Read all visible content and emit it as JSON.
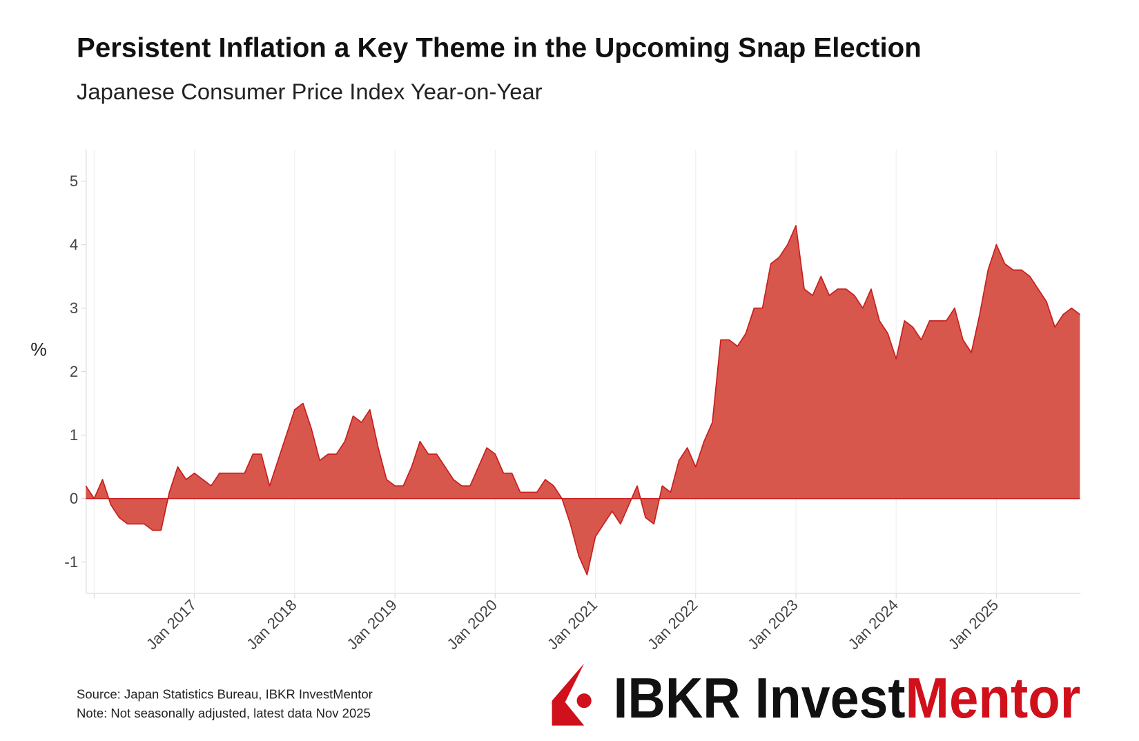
{
  "chart_data": {
    "type": "area",
    "title": "Persistent Inflation a Key Theme in the Upcoming Snap Election",
    "subtitle": "Japanese Consumer Price Index Year-on-Year",
    "xlabel": "",
    "ylabel": "%",
    "ylim": [
      -1.5,
      5.5
    ],
    "yticks": [
      5,
      4,
      3,
      2,
      1,
      0,
      -1
    ],
    "ytick_labels": [
      "5",
      "4",
      "3",
      "2",
      "1",
      "0",
      "-1"
    ],
    "xtick_labels": [
      "Jan 2017",
      "Jan 2018",
      "Jan 2019",
      "Jan 2020",
      "Jan 2021",
      "Jan 2022",
      "Jan 2023",
      "Jan 2024",
      "Jan 2025"
    ],
    "grid": true,
    "x_start": "Dec 2015",
    "x_end": "Nov 2025",
    "frequency": "monthly",
    "series": [
      {
        "name": "Japan CPI YoY",
        "color": "#d8574d",
        "line_color": "#c81e1e",
        "values": [
          0.2,
          0.0,
          0.3,
          -0.1,
          -0.3,
          -0.4,
          -0.4,
          -0.4,
          -0.5,
          -0.5,
          0.1,
          0.5,
          0.3,
          0.4,
          0.3,
          0.2,
          0.4,
          0.4,
          0.4,
          0.4,
          0.7,
          0.7,
          0.2,
          0.6,
          1.0,
          1.4,
          1.5,
          1.1,
          0.6,
          0.7,
          0.7,
          0.9,
          1.3,
          1.2,
          1.4,
          0.8,
          0.3,
          0.2,
          0.2,
          0.5,
          0.9,
          0.7,
          0.7,
          0.5,
          0.3,
          0.2,
          0.2,
          0.5,
          0.8,
          0.7,
          0.4,
          0.4,
          0.1,
          0.1,
          0.1,
          0.3,
          0.2,
          0.0,
          -0.4,
          -0.9,
          -1.2,
          -0.6,
          -0.4,
          -0.2,
          -0.4,
          -0.1,
          0.2,
          -0.3,
          -0.4,
          0.2,
          0.1,
          0.6,
          0.8,
          0.5,
          0.9,
          1.2,
          2.5,
          2.5,
          2.4,
          2.6,
          3.0,
          3.0,
          3.7,
          3.8,
          4.0,
          4.3,
          3.3,
          3.2,
          3.5,
          3.2,
          3.3,
          3.3,
          3.2,
          3.0,
          3.3,
          2.8,
          2.6,
          2.2,
          2.8,
          2.7,
          2.5,
          2.8,
          2.8,
          2.8,
          3.0,
          2.5,
          2.3,
          2.9,
          3.6,
          4.0,
          3.7,
          3.6,
          3.6,
          3.5,
          3.3,
          3.1,
          2.7,
          2.9,
          3.0,
          2.9
        ]
      }
    ]
  },
  "footer": {
    "source": "Source: Japan Statistics Bureau, IBKR InvestMentor",
    "note": "Note: Not seasonally adjusted, latest data Nov 2025"
  },
  "logo": {
    "part1": "IBKR Invest",
    "part2": "Mentor",
    "red": "#d0101a"
  }
}
